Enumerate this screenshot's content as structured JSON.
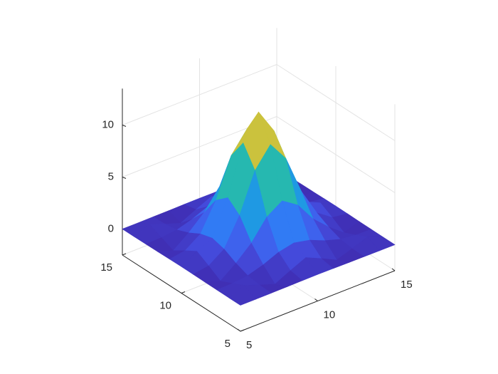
{
  "chart_data": {
    "type": "surface",
    "colormap": "parula",
    "grid": true,
    "x": [
      5,
      6,
      7,
      8,
      9,
      10,
      11,
      12,
      13,
      14,
      15
    ],
    "y": [
      5,
      6,
      7,
      8,
      9,
      10,
      11,
      12,
      13,
      14,
      15
    ],
    "z": [
      [
        0,
        0,
        0.01,
        0.02,
        0.04,
        0.05,
        0.04,
        0.02,
        0.01,
        0,
        0
      ],
      [
        0,
        0.6,
        0.05,
        -0.46,
        0.27,
        0.94,
        0.27,
        -0.46,
        0.05,
        0.6,
        0
      ],
      [
        0.01,
        0.05,
        0.22,
        0.67,
        1.3,
        1.62,
        1.3,
        0.67,
        0.22,
        0.05,
        0.01
      ],
      [
        0.02,
        -0.46,
        0.67,
        2.03,
        3.95,
        4.93,
        3.95,
        2.03,
        0.67,
        -0.46,
        0.02
      ],
      [
        0.04,
        0.27,
        1.3,
        3.95,
        7.69,
        9.61,
        7.69,
        3.95,
        1.3,
        0.27,
        0.04
      ],
      [
        0.05,
        0.94,
        1.62,
        4.93,
        9.61,
        12,
        9.61,
        4.93,
        1.62,
        0.94,
        0.05
      ],
      [
        0.04,
        0.27,
        1.3,
        3.95,
        7.69,
        9.61,
        7.69,
        3.95,
        1.3,
        0.27,
        0.04
      ],
      [
        0.02,
        -0.46,
        0.67,
        2.03,
        3.95,
        4.93,
        3.95,
        2.03,
        0.67,
        -0.46,
        0.02
      ],
      [
        0.01,
        0.05,
        0.22,
        0.67,
        1.3,
        1.62,
        1.3,
        0.67,
        0.22,
        0.05,
        0.01
      ],
      [
        0,
        0.6,
        0.05,
        -0.46,
        0.27,
        0.94,
        0.27,
        -0.46,
        0.05,
        0.6,
        0
      ],
      [
        0,
        0,
        0.01,
        0.02,
        0.04,
        0.05,
        0.04,
        0.02,
        0.01,
        0,
        0
      ]
    ],
    "xlim": [
      5,
      15
    ],
    "ylim": [
      5,
      15
    ],
    "zlim": [
      -2.5,
      13.5
    ],
    "xticks": [
      5,
      10,
      15
    ],
    "yticks": [
      5,
      10,
      15
    ],
    "zticks": [
      0,
      5,
      10
    ]
  }
}
